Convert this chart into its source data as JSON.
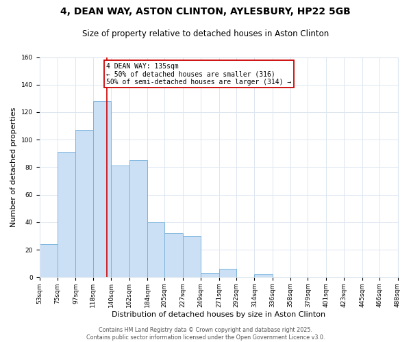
{
  "title": "4, DEAN WAY, ASTON CLINTON, AYLESBURY, HP22 5GB",
  "subtitle": "Size of property relative to detached houses in Aston Clinton",
  "xlabel": "Distribution of detached houses by size in Aston Clinton",
  "ylabel": "Number of detached properties",
  "bin_edges": [
    53,
    75,
    97,
    118,
    140,
    162,
    184,
    205,
    227,
    249,
    271,
    292,
    314,
    336,
    358,
    379,
    401,
    423,
    445,
    466,
    488
  ],
  "bar_heights": [
    24,
    91,
    107,
    128,
    81,
    85,
    40,
    32,
    30,
    3,
    6,
    0,
    2,
    0,
    0,
    0,
    0,
    0,
    0,
    0
  ],
  "bar_color": "#cce0f5",
  "bar_edge_color": "#7ab4de",
  "red_line_x": 135,
  "ylim": [
    0,
    160
  ],
  "yticks": [
    0,
    20,
    40,
    60,
    80,
    100,
    120,
    140,
    160
  ],
  "annotation_text": "4 DEAN WAY: 135sqm\n← 50% of detached houses are smaller (316)\n50% of semi-detached houses are larger (314) →",
  "annotation_box_color": "#ffffff",
  "annotation_box_edge_color": "#cc0000",
  "footer_text": "Contains HM Land Registry data © Crown copyright and database right 2025.\nContains public sector information licensed under the Open Government Licence v3.0.",
  "background_color": "#ffffff",
  "grid_color": "#dce6f0",
  "title_fontsize": 10,
  "subtitle_fontsize": 8.5,
  "ylabel_fontsize": 8,
  "xlabel_fontsize": 8,
  "tick_fontsize": 6.5,
  "annotation_fontsize": 7,
  "footer_fontsize": 5.8
}
